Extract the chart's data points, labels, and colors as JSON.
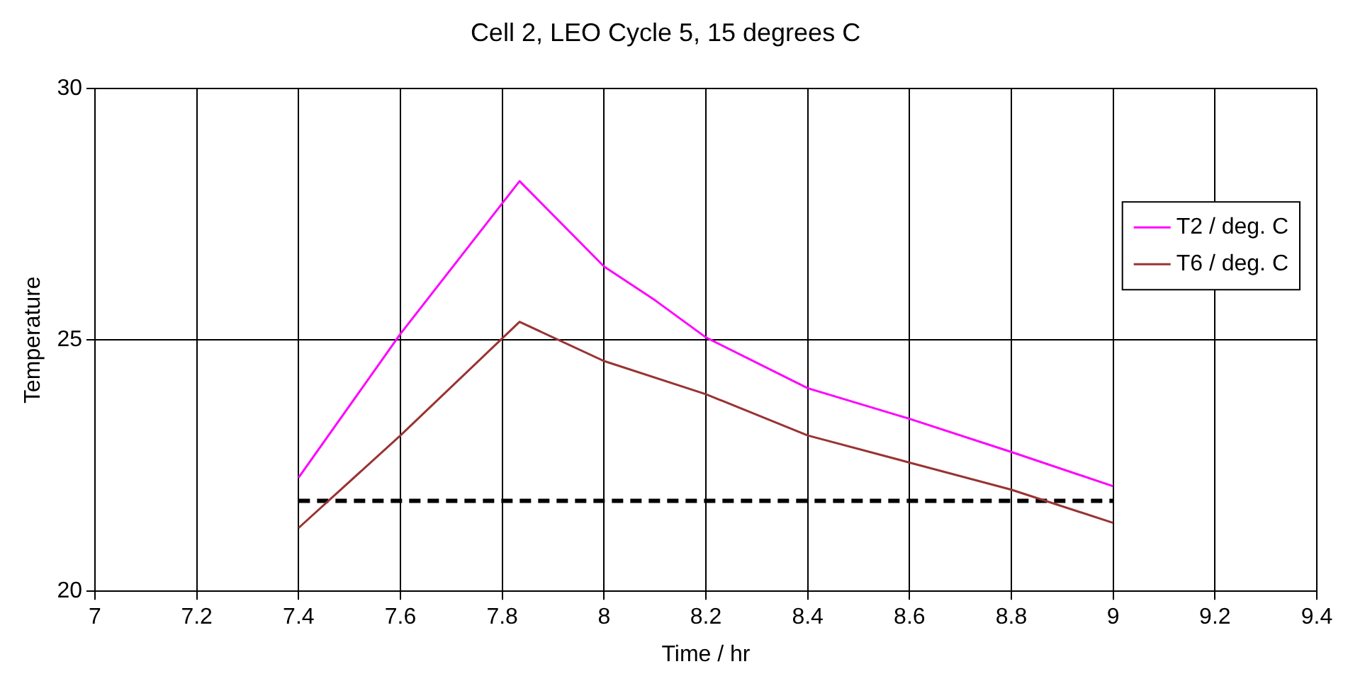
{
  "chart_data": {
    "type": "line",
    "title": "Cell 2, LEO Cycle 5, 15 degrees C",
    "xlabel": "Time / hr",
    "ylabel": "Temperature",
    "xlim": [
      7,
      9.4
    ],
    "xticks": [
      7,
      7.2,
      7.4,
      7.6,
      7.8,
      8,
      8.2,
      8.4,
      8.6,
      8.8,
      9,
      9.2,
      9.4
    ],
    "ylim": [
      20,
      30
    ],
    "yticks": [
      20,
      25,
      30
    ],
    "grid": true,
    "legend": "top right",
    "marker": "none",
    "series": [
      {
        "name": "T2 / deg. C",
        "color": "#ff00ff",
        "x": [
          7.4,
          7.6,
          7.834,
          8.0,
          8.1,
          8.2,
          8.4,
          8.6,
          8.8,
          9.0
        ],
        "values": [
          22.26,
          25.12,
          28.16,
          26.46,
          25.79,
          25.05,
          24.04,
          23.43,
          22.77,
          22.09
        ]
      },
      {
        "name": "T6 / deg. C",
        "color": "#993333",
        "x": [
          7.4,
          7.6,
          7.834,
          8.0,
          8.2,
          8.4,
          8.6,
          8.8,
          9.0
        ],
        "values": [
          21.26,
          23.1,
          25.36,
          24.58,
          23.92,
          23.1,
          22.56,
          22.02,
          21.36
        ]
      },
      {
        "color": "#000000",
        "line_style": "dashed",
        "x": [
          7.4,
          9.0
        ],
        "values": [
          21.8,
          21.8
        ]
      }
    ]
  }
}
